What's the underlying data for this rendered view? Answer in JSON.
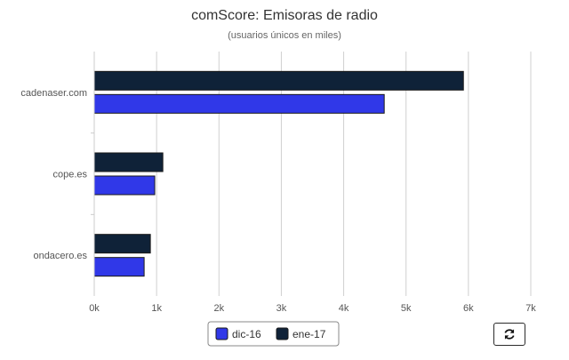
{
  "chart_data": {
    "type": "bar",
    "orientation": "horizontal",
    "title": "comScore: Emisoras de radio",
    "subtitle": "(usuarios únicos en miles)",
    "categories": [
      "cadenaser.com",
      "cope.es",
      "ondacero.es"
    ],
    "series": [
      {
        "name": "dic-16",
        "color": "#3038e8",
        "values": [
          4650,
          970,
          800
        ]
      },
      {
        "name": "ene-17",
        "color": "#0f2238",
        "values": [
          5920,
          1100,
          900
        ]
      }
    ],
    "xlim": [
      0,
      7000
    ],
    "xticks": [
      0,
      1000,
      2000,
      3000,
      4000,
      5000,
      6000,
      7000
    ],
    "xtick_labels": [
      "0k",
      "1k",
      "2k",
      "3k",
      "4k",
      "5k",
      "6k",
      "7k"
    ],
    "grid": true,
    "legend_position": "bottom-center"
  },
  "controls": {
    "refresh_icon": "refresh-icon"
  }
}
